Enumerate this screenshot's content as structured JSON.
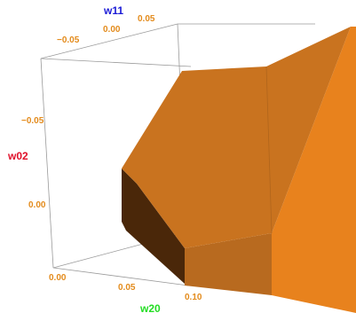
{
  "plot": {
    "colors": {
      "tick": "#e38b1c",
      "box_edge": "#9a9a9a",
      "face_main": "#c9731f",
      "face_right": "#e8821d",
      "face_bottom": "#b86a1f",
      "face_dark": "#4a2709",
      "axis_w11": "#1a1ad6",
      "axis_w02": "#e0102a",
      "axis_w20": "#22dd22"
    },
    "axes": {
      "w11": {
        "title": "w11",
        "ticks": [
          "0.05",
          "0.00",
          "−0.05"
        ]
      },
      "w02": {
        "title": "w02",
        "ticks": [
          "−0.05",
          "0.00"
        ]
      },
      "w20": {
        "title": "w20",
        "ticks": [
          "0.00",
          "0.05",
          "0.10"
        ]
      }
    }
  }
}
